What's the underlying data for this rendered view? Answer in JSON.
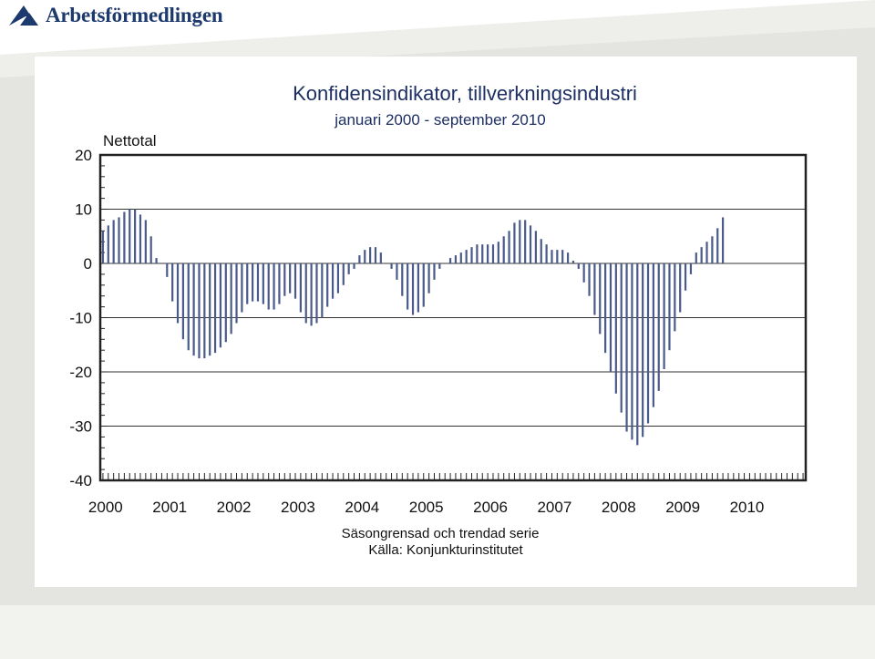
{
  "brand": {
    "name": "Arbetsförmedlingen",
    "colors": {
      "logo_blue": "#1d3a6e",
      "bar_color": "#4a5a8a"
    }
  },
  "chart_data": {
    "type": "bar",
    "title": "Konfidensindikator, tillverkningsindustri",
    "subtitle": "januari 2000 - september 2010",
    "ylabel": "Nettotal",
    "ylim": [
      -40,
      20
    ],
    "yticks": [
      "20",
      "10",
      "0",
      "-10",
      "-20",
      "-30",
      "-40"
    ],
    "xlabels": [
      "2000",
      "2001",
      "2002",
      "2003",
      "2004",
      "2005",
      "2006",
      "2007",
      "2008",
      "2009",
      "2010"
    ],
    "grid": "horizontal",
    "notes": [
      "Säsongrensad och trendad serie",
      "Källa: Konjunkturinstitutet"
    ],
    "x_start": "2000-01",
    "frequency": "monthly",
    "values": [
      6,
      7,
      8,
      8.5,
      9.5,
      10,
      10,
      9,
      8,
      5,
      1,
      0,
      -2.5,
      -7,
      -11,
      -14,
      -16,
      -17,
      -17.5,
      -17.5,
      -17,
      -16.5,
      -15.5,
      -14.5,
      -13,
      -11,
      -9,
      -7.5,
      -7,
      -7,
      -7.5,
      -8.5,
      -8.5,
      -7.5,
      -6,
      -5.5,
      -6.5,
      -9,
      -11,
      -11.5,
      -11,
      -10,
      -8,
      -6.5,
      -5.5,
      -4,
      -2,
      -1,
      1.5,
      2.5,
      3,
      3,
      2,
      0,
      -1,
      -3,
      -6,
      -8.5,
      -9.5,
      -9,
      -8,
      -5.5,
      -3,
      -1,
      0,
      1,
      1.5,
      2,
      2.5,
      3,
      3.5,
      3.5,
      3.5,
      3.5,
      4,
      5,
      6,
      7.5,
      8,
      8,
      7,
      6,
      4.5,
      3.5,
      2.5,
      2.5,
      2.5,
      2,
      0.5,
      -1,
      -3.5,
      -6,
      -9.5,
      -13,
      -16.5,
      -20,
      -24,
      -27.5,
      -31,
      -32.5,
      -33.5,
      -32,
      -29.5,
      -26.5,
      -23.5,
      -19.5,
      -16,
      -12.5,
      -9,
      -5,
      -2,
      2,
      3,
      4,
      5,
      6.5,
      8.5
    ]
  }
}
